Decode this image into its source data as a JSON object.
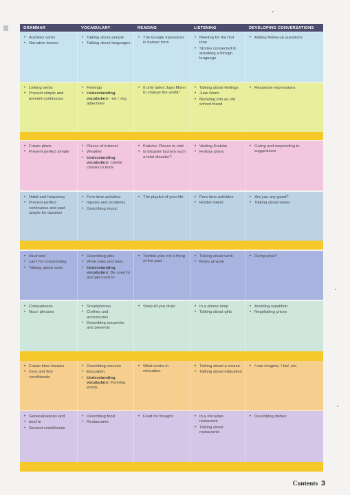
{
  "headers": [
    "GRAMMAR",
    "VOCABULARY",
    "READING",
    "LISTENING",
    "DEVELOPING CONVERSATIONS"
  ],
  "colors": {
    "header": "#4b4c6e",
    "unit1": "#c7e3ef",
    "unit2": "#e7ef9c",
    "unit3": "#f1c6de",
    "unit4": "#bcd3e6",
    "unit5": "#a9b3df",
    "unit6": "#cfe6dc",
    "unit7": "#f6cf8e",
    "unit8": "#d3c6e6",
    "strip": "#f6c92a"
  },
  "rows": [
    {
      "grammar": [
        {
          "t": "Auxiliary verbs"
        },
        {
          "t": "Narrative tenses"
        }
      ],
      "vocabulary": [
        {
          "t": "Talking about people"
        },
        {
          "t": "Talking about languages"
        }
      ],
      "reading": [
        {
          "t": "The Google translators in human form"
        }
      ],
      "listening": [
        {
          "t": "Meeting for the first time"
        },
        {
          "t": "Stories connected to speaking a foreign language"
        }
      ],
      "conversations": [
        {
          "t": "Asking follow-up questions"
        }
      ]
    },
    {
      "grammar": [
        {
          "t": "Linking verbs"
        },
        {
          "t": "Present simple and present continuous"
        }
      ],
      "vocabulary": [
        {
          "t": "Feelings"
        },
        {
          "b": "Understanding vocabulary:",
          "t": " -ed / -ing adjectives"
        }
      ],
      "reading": [
        {
          "t": "It only takes Juan Mann to change the world!"
        }
      ],
      "listening": [
        {
          "t": "Talking about feelings"
        },
        {
          "t": "Juan Mann"
        },
        {
          "t": "Bumping into an old school friend"
        }
      ],
      "conversations": [
        {
          "t": "Response expressions"
        }
      ]
    },
    {
      "grammar": [
        {
          "t": "Future plans"
        },
        {
          "t": "Present perfect simple"
        }
      ],
      "vocabulary": [
        {
          "t": "Places of interest"
        },
        {
          "t": "Weather"
        },
        {
          "b": "Understanding vocabulary:",
          "t": " Useful chunks in texts"
        }
      ],
      "reading": [
        {
          "t": "Kraków: Places to visit"
        },
        {
          "t": "Is disaster tourism such a total disaster?"
        }
      ],
      "listening": [
        {
          "t": "Visiting Kraków"
        },
        {
          "t": "Holiday plans"
        }
      ],
      "conversations": [
        {
          "t": "Giving and responding to suggestions"
        }
      ]
    },
    {
      "grammar": [
        {
          "t": "Habit and frequency"
        },
        {
          "t": "Present perfect continuous and past simple for duration"
        }
      ],
      "vocabulary": [
        {
          "t": "Free-time activities"
        },
        {
          "t": "Injuries and problems"
        },
        {
          "t": "Describing music"
        }
      ],
      "reading": [
        {
          "t": "The playlist of your life"
        }
      ],
      "listening": [
        {
          "t": "Free-time activities"
        },
        {
          "t": "Hidden talent"
        }
      ],
      "conversations": [
        {
          "i": "Are you any good?"
        },
        {
          "t": "Talking about tastes"
        }
      ]
    },
    {
      "grammar": [
        {
          "i": "Must",
          "t": " and "
        },
        {
          "i": "can't",
          "t": " for commenting"
        },
        {
          "t": "Talking about rules"
        }
      ],
      "vocabulary": [
        {
          "t": "Describing jobs"
        },
        {
          "t": "Work rules and laws"
        },
        {
          "b": "Understanding vocabulary:",
          "i": " Be used to and get used to"
        }
      ],
      "reading": [
        {
          "t": "Terrible jobs not a thing of the past"
        }
      ],
      "listening": [
        {
          "t": "Talking about work"
        },
        {
          "t": "Rules at work"
        }
      ],
      "conversations": [
        {
          "i": "Doing what?"
        }
      ]
    },
    {
      "grammar": [
        {
          "t": "Comparisons"
        },
        {
          "t": "Noun phrases"
        }
      ],
      "vocabulary": [
        {
          "t": "Smartphones"
        },
        {
          "t": "Clothes and accessories"
        },
        {
          "t": "Describing souvenirs and presents"
        }
      ],
      "reading": [
        {
          "t": "Shop till you drop!"
        }
      ],
      "listening": [
        {
          "t": "In a phone shop"
        },
        {
          "t": "Talking about gifts"
        }
      ],
      "conversations": [
        {
          "t": "Avoiding repetition"
        },
        {
          "t": "Negotiating prices"
        }
      ]
    },
    {
      "grammar": [
        {
          "t": "Future time clauses"
        },
        {
          "t": "Zero and first conditionals"
        }
      ],
      "vocabulary": [
        {
          "t": "Describing courses"
        },
        {
          "t": "Education"
        },
        {
          "b": "Understanding vocabulary:",
          "t": " Forming words"
        }
      ],
      "reading": [
        {
          "t": "What works in education"
        }
      ],
      "listening": [
        {
          "t": "Talking about a course"
        },
        {
          "t": "Talking about education"
        }
      ],
      "conversations": [
        {
          "i": "I can imagine, I bet,",
          "t": " etc."
        }
      ]
    },
    {
      "grammar": [
        {
          "t": "Generalisations and "
        },
        {
          "i": "tend to"
        },
        {
          "t": "Second conditionals"
        }
      ],
      "vocabulary": [
        {
          "t": "Describing food"
        },
        {
          "t": "Restaurants"
        }
      ],
      "reading": [
        {
          "t": "Food for thought"
        }
      ],
      "listening": [
        {
          "t": "In a Peruvian restaurant"
        },
        {
          "t": "Talking about restaurants"
        }
      ],
      "conversations": [
        {
          "t": "Describing dishes"
        }
      ]
    }
  ],
  "footer": {
    "label": "Contents",
    "page": "3"
  }
}
